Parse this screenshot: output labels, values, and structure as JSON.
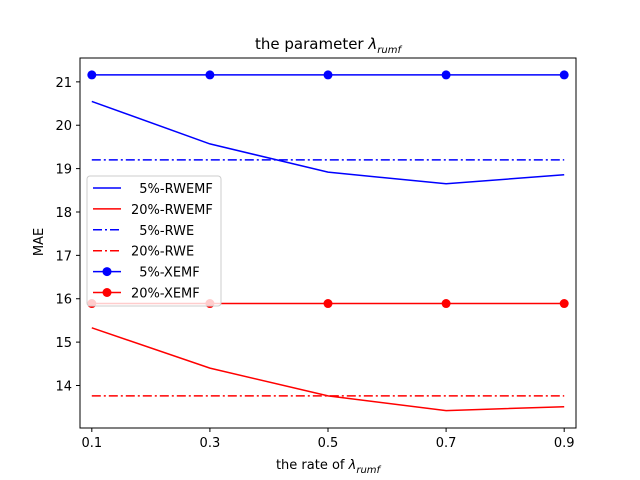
{
  "chart_data": {
    "type": "line",
    "title_prefix": "the parameter ",
    "title_symbol": "λ",
    "title_sub": "rumf",
    "xlabel_prefix": "the rate of ",
    "xlabel_symbol": "λ",
    "xlabel_sub": "rumf",
    "ylabel": "MAE",
    "x": [
      0.1,
      0.3,
      0.5,
      0.7,
      0.9
    ],
    "x_tick_labels": [
      "0.1",
      "0.3",
      "0.5",
      "0.7",
      "0.9"
    ],
    "y_ticks": [
      14,
      15,
      16,
      17,
      18,
      19,
      20,
      21
    ],
    "xlim": [
      0.08,
      0.92
    ],
    "ylim": [
      13.02,
      21.55
    ],
    "grid": false,
    "legend_position": "center-left",
    "series": [
      {
        "name": "  5%-RWEMF",
        "color": "#0000ff",
        "linestyle": "solid",
        "marker": "none",
        "values": [
          20.55,
          19.57,
          18.92,
          18.65,
          18.86
        ]
      },
      {
        "name": "20%-RWEMF",
        "color": "#ff0000",
        "linestyle": "solid",
        "marker": "none",
        "values": [
          15.33,
          14.4,
          13.76,
          13.42,
          13.51
        ]
      },
      {
        "name": "  5%-RWE",
        "color": "#0000ff",
        "linestyle": "dashdot",
        "marker": "none",
        "values": [
          19.2,
          19.2,
          19.2,
          19.2,
          19.2
        ]
      },
      {
        "name": "20%-RWE",
        "color": "#ff0000",
        "linestyle": "dashdot",
        "marker": "none",
        "values": [
          13.76,
          13.76,
          13.76,
          13.76,
          13.76
        ]
      },
      {
        "name": "  5%-XEMF",
        "color": "#0000ff",
        "linestyle": "solid",
        "marker": "circle",
        "values": [
          21.16,
          21.16,
          21.16,
          21.16,
          21.16
        ]
      },
      {
        "name": "20%-XEMF",
        "color": "#ff0000",
        "linestyle": "solid",
        "marker": "circle",
        "values": [
          15.89,
          15.89,
          15.89,
          15.89,
          15.89
        ]
      }
    ]
  }
}
